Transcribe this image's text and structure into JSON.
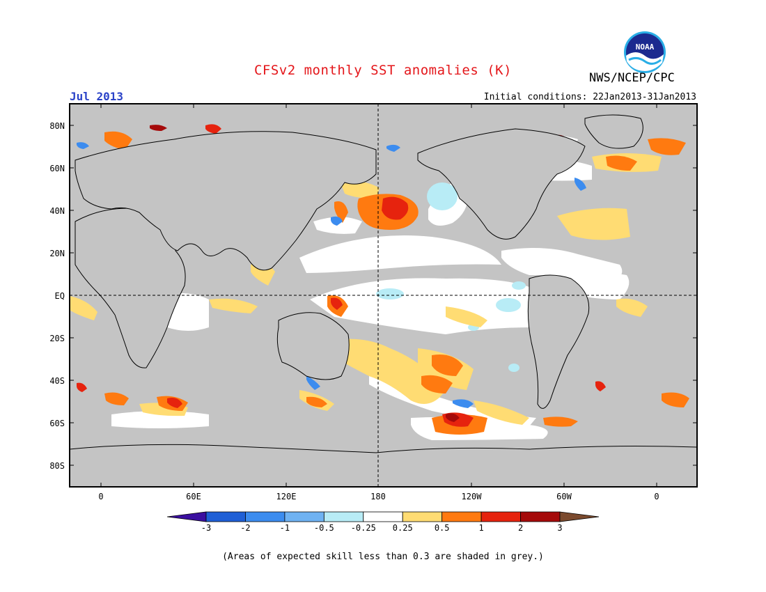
{
  "title": "CFSv2 monthly SST anomalies (K)",
  "forecast_month": "Jul 2013",
  "initial_conditions": "Initial conditions: 22Jan2013-31Jan2013",
  "agency": "NWS/NCEP/CPC",
  "logo_text": "NOAA",
  "footnote": "(Areas of expected skill less than 0.3 are shaded in grey.)",
  "lat_labels": [
    "80N",
    "60N",
    "40N",
    "20N",
    "EQ",
    "20S",
    "40S",
    "60S",
    "80S"
  ],
  "lon_labels": [
    "0",
    "60E",
    "120E",
    "180",
    "120W",
    "60W",
    "0"
  ],
  "colorbar": {
    "ticks": [
      "-3",
      "-2",
      "-1",
      "-0.5",
      "-0.25",
      "0.25",
      "0.5",
      "1",
      "2",
      "3"
    ],
    "colors": [
      "#3b0fa0",
      "#1f5fd6",
      "#3c8cef",
      "#6fb2f2",
      "#b8ecf6",
      "#ffffff",
      "#ffdc73",
      "#ff7a10",
      "#e6230e",
      "#a50a0a",
      "#7b4a2e"
    ]
  },
  "skill_mask_color": "#c4c4c4"
}
